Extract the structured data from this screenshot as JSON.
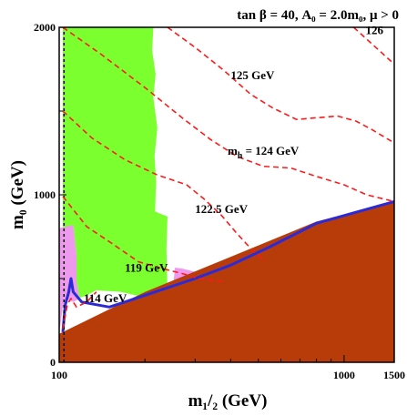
{
  "chart_data": {
    "type": "area",
    "title": "tan β = 40, A₀ = 2.0m₀,  μ > 0",
    "xlabel": "m₁/₂ (GeV)",
    "ylabel": "m₀ (GeV)",
    "xscale": "log",
    "xlim": [
      100,
      1500
    ],
    "ylim": [
      0,
      2000
    ],
    "xticks": [
      {
        "value": 100,
        "label": "100"
      },
      {
        "value": 1000,
        "label": "1000"
      },
      {
        "value": 1500,
        "label": "1500"
      }
    ],
    "yticks": [
      {
        "value": 0,
        "label": "0"
      },
      {
        "value": 1000,
        "label": "1000"
      },
      {
        "value": 2000,
        "label": "2000"
      }
    ],
    "colors": {
      "charged_lsp": "#b83c0a",
      "gminus2": "#ee99ee",
      "bsgamma": "#7cff2e",
      "relic": "#2a2ad8",
      "higgs": "#ff1a1a",
      "chargino": "#000000"
    },
    "regions": {
      "charged_lsp": [
        [
          100,
          170
        ],
        [
          200,
          420
        ],
        [
          400,
          630
        ],
        [
          800,
          840
        ],
        [
          1500,
          960
        ],
        [
          1500,
          0
        ],
        [
          100,
          0
        ]
      ],
      "gminus2": [
        [
          100,
          170
        ],
        [
          100,
          800
        ],
        [
          112,
          820
        ],
        [
          115,
          640
        ],
        [
          115,
          480
        ],
        [
          118,
          380
        ],
        [
          112,
          360
        ],
        [
          106,
          380
        ],
        [
          103,
          330
        ]
      ],
      "gminus2_b": [
        [
          235,
          390
        ],
        [
          240,
          460
        ],
        [
          255,
          460
        ],
        [
          310,
          380
        ],
        [
          330,
          450
        ],
        [
          395,
          460
        ],
        [
          360,
          490
        ],
        [
          300,
          540
        ],
        [
          270,
          560
        ],
        [
          255,
          565
        ],
        [
          252,
          480
        ],
        [
          248,
          420
        ],
        [
          240,
          370
        ]
      ],
      "bsgamma": [
        [
          103,
          200
        ],
        [
          103,
          2000
        ],
        [
          214,
          2000
        ],
        [
          212,
          1860
        ],
        [
          218,
          1720
        ],
        [
          214,
          1580
        ],
        [
          221,
          1400
        ],
        [
          216,
          1230
        ],
        [
          219,
          1080
        ],
        [
          217,
          900
        ],
        [
          240,
          870
        ],
        [
          238,
          680
        ],
        [
          240,
          400
        ],
        [
          235,
          380
        ],
        [
          215,
          370
        ],
        [
          200,
          390
        ],
        [
          185,
          400
        ],
        [
          165,
          420
        ],
        [
          135,
          430
        ],
        [
          125,
          400
        ],
        [
          118,
          385
        ],
        [
          115,
          470
        ],
        [
          115,
          640
        ],
        [
          112,
          820
        ],
        [
          104,
          780
        ]
      ]
    },
    "relic_band": [
      [
        103,
        180
      ],
      [
        105,
        340
      ],
      [
        108,
        420
      ],
      [
        110,
        500
      ],
      [
        112,
        420
      ],
      [
        120,
        360
      ],
      [
        150,
        330
      ],
      [
        200,
        400
      ],
      [
        300,
        500
      ],
      [
        400,
        580
      ],
      [
        550,
        690
      ],
      [
        800,
        830
      ],
      [
        1500,
        960
      ]
    ],
    "chargino_limit": [
      [
        104,
        0
      ],
      [
        104,
        2000
      ]
    ],
    "higgs_contours": [
      {
        "label": "114 GeV",
        "points": [
          [
            103,
            200
          ],
          [
            107,
            350
          ],
          [
            110,
            380
          ],
          [
            115,
            330
          ],
          [
            125,
            360
          ],
          [
            135,
            420
          ]
        ]
      },
      {
        "label": "119 GeV",
        "points": [
          [
            103,
            990
          ],
          [
            125,
            810
          ],
          [
            150,
            720
          ],
          [
            190,
            600
          ],
          [
            230,
            560
          ],
          [
            270,
            530
          ],
          [
            310,
            500
          ],
          [
            380,
            480
          ]
        ]
      },
      {
        "label": "122.5 GeV",
        "points": [
          [
            103,
            1500
          ],
          [
            130,
            1340
          ],
          [
            170,
            1210
          ],
          [
            220,
            1120
          ],
          [
            280,
            1060
          ],
          [
            320,
            980
          ],
          [
            370,
            880
          ],
          [
            420,
            770
          ],
          [
            470,
            680
          ],
          [
            530,
            600
          ]
        ]
      },
      {
        "label": "m_h = 124 GeV",
        "points": [
          [
            103,
            2000
          ],
          [
            140,
            1840
          ],
          [
            200,
            1640
          ],
          [
            270,
            1460
          ],
          [
            340,
            1330
          ],
          [
            420,
            1230
          ],
          [
            520,
            1170
          ],
          [
            650,
            1160
          ],
          [
            800,
            1110
          ],
          [
            1000,
            1060
          ],
          [
            1200,
            1000
          ],
          [
            1500,
            960
          ]
        ]
      },
      {
        "label": "125 GeV",
        "points": [
          [
            240,
            2000
          ],
          [
            300,
            1880
          ],
          [
            380,
            1740
          ],
          [
            470,
            1600
          ],
          [
            560,
            1520
          ],
          [
            680,
            1450
          ],
          [
            800,
            1460
          ],
          [
            950,
            1470
          ],
          [
            1100,
            1440
          ],
          [
            1250,
            1390
          ],
          [
            1500,
            1310
          ]
        ]
      },
      {
        "label": "",
        "points": [
          [
            1080,
            2000
          ],
          [
            1500,
            1780
          ]
        ]
      }
    ],
    "annotations": [
      {
        "text": "125 GeV",
        "x": 400,
        "y": 1690
      },
      {
        "text": "m",
        "sub": "h",
        "rest": " = 124 GeV",
        "x": 390,
        "y": 1240
      },
      {
        "text": "122.5 GeV",
        "x": 300,
        "y": 890
      },
      {
        "text": "119 GeV",
        "x": 170,
        "y": 540
      },
      {
        "text": "114 GeV",
        "x": 122,
        "y": 360
      },
      {
        "text": "126",
        "x": 1190,
        "y": 1960
      }
    ]
  }
}
